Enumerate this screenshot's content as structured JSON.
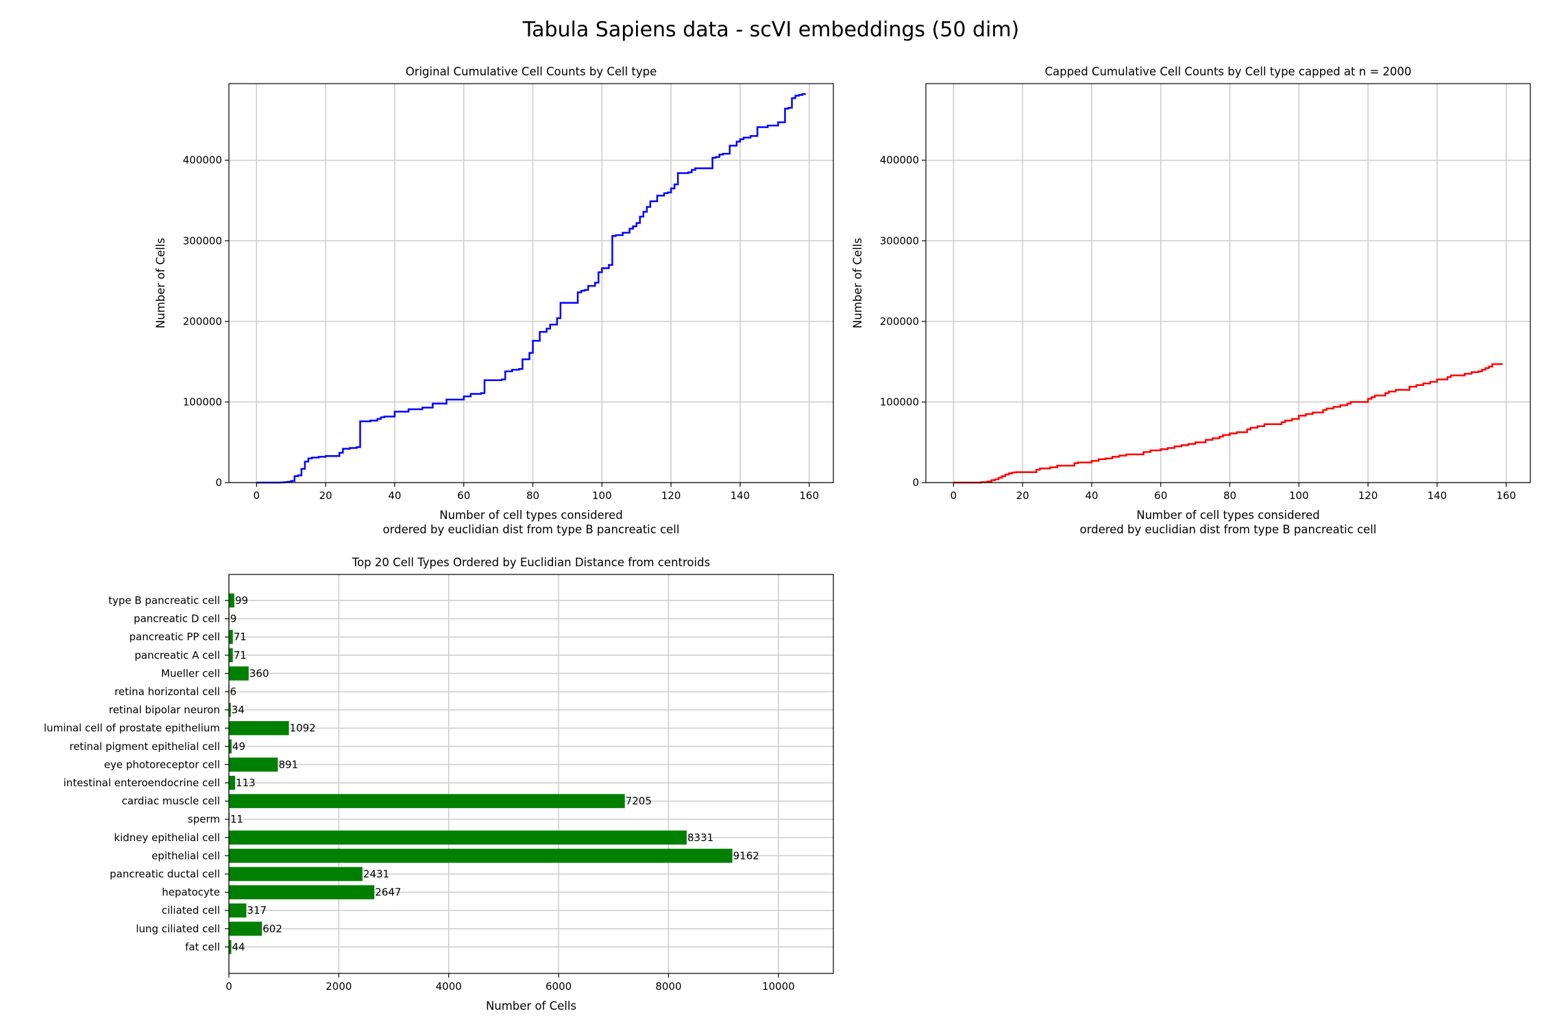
{
  "figure": {
    "suptitle": "Tabula Sapiens data - scVI embeddings (50 dim)"
  },
  "colors": {
    "original_line": "#0000ff",
    "capped_line": "#ff0000",
    "bar": "#008000",
    "grid": "#cccccc",
    "axes": "#000000"
  },
  "chart_data": [
    {
      "type": "line",
      "drawstyle": "steps",
      "title": "Original Cumulative Cell Counts by Cell type",
      "xlabel": "Number of cell types considered\nordered by euclidian dist from type B pancreatic cell",
      "ylabel": "Number of Cells",
      "xlim": [
        -8,
        167
      ],
      "ylim": [
        0,
        495000
      ],
      "xticks": [
        0,
        20,
        40,
        60,
        80,
        100,
        120,
        140,
        160
      ],
      "yticks": [
        0,
        100000,
        200000,
        300000,
        400000
      ],
      "grid": true,
      "series": [
        {
          "color": "#0000ff",
          "x": [
            0,
            6,
            7,
            8,
            9,
            10,
            11,
            12,
            13,
            14,
            15,
            16,
            18,
            20,
            22,
            24,
            25,
            27,
            29,
            30,
            33,
            35,
            36,
            37,
            40,
            44,
            48,
            51,
            55,
            60,
            62,
            65,
            66,
            71,
            72,
            74,
            76,
            77,
            79,
            80,
            82,
            84,
            85,
            87,
            88,
            93,
            94,
            95,
            96,
            98,
            99,
            100,
            102,
            103,
            104,
            106,
            108,
            109,
            110,
            111,
            112,
            113,
            114,
            116,
            118,
            119,
            120,
            121,
            122,
            125,
            126,
            127,
            132,
            133,
            134,
            135,
            137,
            139,
            140,
            141,
            143,
            145,
            148,
            151,
            152,
            153,
            154,
            155,
            156,
            157,
            158,
            159
          ],
          "y": [
            0,
            0,
            200,
            500,
            1000,
            2000,
            8000,
            9000,
            17000,
            26000,
            30000,
            31000,
            32000,
            33000,
            33000,
            37000,
            42000,
            43000,
            44000,
            76000,
            77000,
            79000,
            81000,
            82000,
            88000,
            91000,
            93000,
            98000,
            103000,
            107000,
            110000,
            111000,
            127000,
            128000,
            138000,
            140000,
            141000,
            153000,
            161000,
            176000,
            187000,
            191000,
            196000,
            204000,
            223000,
            236000,
            238000,
            239000,
            244000,
            248000,
            261000,
            266000,
            270000,
            306000,
            307000,
            310000,
            315000,
            318000,
            322000,
            330000,
            336000,
            342000,
            349000,
            356000,
            359000,
            360000,
            365000,
            370000,
            384000,
            385000,
            388000,
            390000,
            403000,
            404000,
            407000,
            408000,
            418000,
            423000,
            426000,
            428000,
            430000,
            441000,
            443000,
            447000,
            447000,
            464000,
            465000,
            477000,
            480000,
            481000,
            482000,
            482000
          ]
        }
      ]
    },
    {
      "type": "line",
      "drawstyle": "steps",
      "title": "Capped Cumulative Cell Counts by Cell type capped at n = 2000",
      "xlabel": "Number of cell types considered\nordered by euclidian dist from type B pancreatic cell",
      "ylabel": "Number of Cells",
      "xlim": [
        -8,
        167
      ],
      "ylim": [
        0,
        495000
      ],
      "xticks": [
        0,
        20,
        40,
        60,
        80,
        100,
        120,
        140,
        160
      ],
      "yticks": [
        0,
        100000,
        200000,
        300000,
        400000
      ],
      "grid": true,
      "series": [
        {
          "color": "#ff0000",
          "x": [
            0,
            6,
            8,
            10,
            11,
            12,
            13,
            14,
            15,
            16,
            17,
            18,
            24,
            25,
            28,
            30,
            35,
            36,
            40,
            42,
            44,
            46,
            48,
            50,
            55,
            57,
            60,
            62,
            64,
            66,
            68,
            70,
            73,
            75,
            77,
            78,
            80,
            82,
            85,
            86,
            88,
            90,
            95,
            96,
            98,
            100,
            102,
            104,
            107,
            108,
            110,
            112,
            114,
            115,
            120,
            121,
            122,
            125,
            126,
            128,
            132,
            134,
            136,
            138,
            140,
            143,
            144,
            148,
            150,
            152,
            153,
            154,
            155,
            156,
            159
          ],
          "y": [
            0,
            0,
            500,
            1500,
            3000,
            4000,
            6000,
            8000,
            10000,
            11500,
            12500,
            13000,
            16000,
            17500,
            19000,
            21000,
            24000,
            25000,
            27000,
            29000,
            30000,
            32000,
            33500,
            35000,
            38000,
            40000,
            41500,
            43000,
            45000,
            46500,
            48000,
            50000,
            53000,
            55000,
            57000,
            59000,
            61000,
            62500,
            66000,
            68000,
            70000,
            72500,
            75000,
            77000,
            79000,
            83000,
            85000,
            87000,
            90000,
            92000,
            94000,
            96000,
            98000,
            100000,
            104000,
            106000,
            108000,
            111000,
            113000,
            115000,
            119000,
            121000,
            123000,
            125000,
            128000,
            131000,
            133000,
            135000,
            137000,
            138000,
            140000,
            142000,
            144000,
            147000,
            147000
          ]
        }
      ]
    },
    {
      "type": "bar",
      "orientation": "horizontal",
      "title": "Top 20 Cell Types Ordered by Euclidian Distance from centroids",
      "xlabel": "Number of Cells",
      "ylabel": "",
      "xlim": [
        0,
        11000
      ],
      "xticks": [
        0,
        2000,
        4000,
        6000,
        8000,
        10000
      ],
      "grid": true,
      "color": "#008000",
      "categories": [
        "type B pancreatic cell",
        "pancreatic D cell",
        "pancreatic PP cell",
        "pancreatic A cell",
        "Mueller cell",
        "retina horizontal cell",
        "retinal bipolar neuron",
        "luminal cell of prostate epithelium",
        "retinal pigment epithelial cell",
        "eye photoreceptor cell",
        "intestinal enteroendocrine cell",
        "cardiac muscle cell",
        "sperm",
        "kidney epithelial cell",
        "epithelial cell",
        "pancreatic ductal cell",
        "hepatocyte",
        "ciliated cell",
        "lung ciliated cell",
        "fat cell"
      ],
      "values": [
        99,
        9,
        71,
        71,
        360,
        6,
        34,
        1092,
        49,
        891,
        113,
        7205,
        11,
        8331,
        9162,
        2431,
        2647,
        317,
        602,
        44
      ],
      "data_labels": [
        "99",
        "9",
        "71",
        "71",
        "360",
        "6",
        "34",
        "1092",
        "49",
        "891",
        "113",
        "7205",
        "11",
        "8331",
        "9162",
        "2431",
        "2647",
        "317",
        "602",
        "44"
      ]
    }
  ]
}
